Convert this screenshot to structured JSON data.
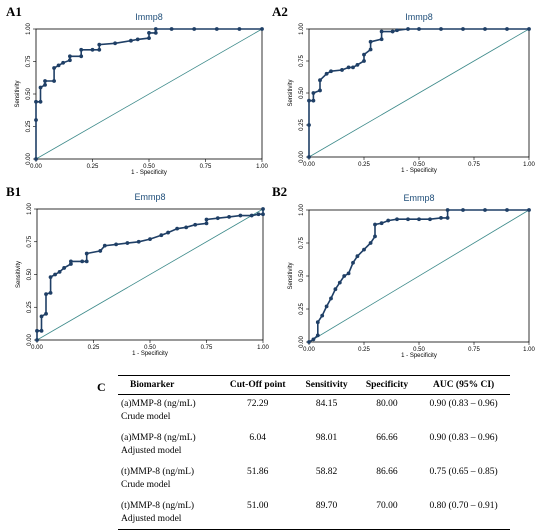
{
  "chart_data": [
    {
      "panel": "A1",
      "type": "line",
      "title": "Immp8",
      "xlabel": "1 - Specificity",
      "ylabel": "Sensitivity",
      "xlim": [
        0,
        1
      ],
      "ylim": [
        0,
        1
      ],
      "xticks": [
        "0.00",
        "0.25",
        "0.50",
        "0.75",
        "1.00"
      ],
      "yticks": [
        "0.00",
        "0.25",
        "0.50",
        "0.75",
        "1.00"
      ],
      "x": [
        0,
        0,
        0,
        0.02,
        0.02,
        0.04,
        0.04,
        0.08,
        0.08,
        0.1,
        0.12,
        0.15,
        0.15,
        0.2,
        0.2,
        0.25,
        0.28,
        0.28,
        0.35,
        0.42,
        0.45,
        0.5,
        0.5,
        0.53,
        0.53,
        0.6,
        0.7,
        0.8,
        0.9,
        1.0
      ],
      "y": [
        0,
        0.3,
        0.44,
        0.44,
        0.55,
        0.57,
        0.6,
        0.6,
        0.7,
        0.72,
        0.74,
        0.76,
        0.79,
        0.79,
        0.84,
        0.84,
        0.84,
        0.88,
        0.89,
        0.91,
        0.92,
        0.93,
        0.97,
        0.97,
        1.0,
        1.0,
        1.0,
        1.0,
        1.0,
        1.0
      ]
    },
    {
      "panel": "A2",
      "type": "line",
      "title": "Immp8",
      "xlabel": "1 - Specificity",
      "ylabel": "Sensitivity",
      "xlim": [
        0,
        1
      ],
      "ylim": [
        0,
        1
      ],
      "xticks": [
        "0.00",
        "0.25",
        "0.50",
        "0.75",
        "1.00"
      ],
      "yticks": [
        "0.00",
        "0.25",
        "0.50",
        "0.75",
        "1.00"
      ],
      "x": [
        0,
        0,
        0,
        0.02,
        0.02,
        0.05,
        0.05,
        0.08,
        0.1,
        0.15,
        0.18,
        0.2,
        0.22,
        0.25,
        0.25,
        0.28,
        0.28,
        0.33,
        0.33,
        0.38,
        0.4,
        0.45,
        0.5,
        0.6,
        0.7,
        0.8,
        0.9,
        1.0
      ],
      "y": [
        0,
        0.25,
        0.44,
        0.44,
        0.5,
        0.52,
        0.6,
        0.65,
        0.67,
        0.68,
        0.7,
        0.7,
        0.72,
        0.75,
        0.8,
        0.84,
        0.9,
        0.92,
        0.98,
        0.98,
        0.99,
        1.0,
        1.0,
        1.0,
        1.0,
        1.0,
        1.0,
        1.0
      ]
    },
    {
      "panel": "B1",
      "type": "line",
      "title": "Emmp8",
      "xlabel": "1 - Specificity",
      "ylabel": "Sensitivity",
      "xlim": [
        0,
        1
      ],
      "ylim": [
        0,
        1
      ],
      "xticks": [
        "0.00",
        "0.25",
        "0.50",
        "0.75",
        "1.00"
      ],
      "yticks": [
        "0.00",
        "0.25",
        "0.50",
        "0.75",
        "1.00"
      ],
      "x": [
        0,
        0,
        0.02,
        0.02,
        0.04,
        0.04,
        0.06,
        0.06,
        0.08,
        0.1,
        0.12,
        0.15,
        0.15,
        0.2,
        0.22,
        0.22,
        0.28,
        0.3,
        0.35,
        0.4,
        0.45,
        0.5,
        0.55,
        0.58,
        0.62,
        0.66,
        0.7,
        0.75,
        0.75,
        0.8,
        0.85,
        0.9,
        0.95,
        0.98,
        1.0,
        1.0
      ],
      "y": [
        0,
        0.07,
        0.07,
        0.18,
        0.2,
        0.35,
        0.36,
        0.48,
        0.5,
        0.52,
        0.55,
        0.58,
        0.6,
        0.6,
        0.6,
        0.66,
        0.68,
        0.72,
        0.73,
        0.74,
        0.75,
        0.77,
        0.8,
        0.82,
        0.85,
        0.86,
        0.88,
        0.89,
        0.92,
        0.93,
        0.94,
        0.95,
        0.95,
        0.96,
        0.96,
        1.0
      ]
    },
    {
      "panel": "B2",
      "type": "line",
      "title": "Emmp8",
      "xlabel": "1 - Specificity",
      "ylabel": "Sensitivity",
      "xlim": [
        0,
        1
      ],
      "ylim": [
        0,
        1
      ],
      "xticks": [
        "0.00",
        "0.25",
        "0.50",
        "0.75",
        "1.00"
      ],
      "yticks": [
        "0.00",
        "0.25",
        "0.50",
        "0.75",
        "1.00"
      ],
      "x": [
        0,
        0.02,
        0.04,
        0.04,
        0.06,
        0.08,
        0.1,
        0.12,
        0.14,
        0.16,
        0.18,
        0.2,
        0.22,
        0.25,
        0.28,
        0.3,
        0.3,
        0.33,
        0.36,
        0.4,
        0.45,
        0.5,
        0.55,
        0.6,
        0.63,
        0.63,
        0.7,
        0.8,
        0.9,
        1.0
      ],
      "y": [
        0,
        0.02,
        0.05,
        0.15,
        0.2,
        0.27,
        0.33,
        0.4,
        0.45,
        0.5,
        0.52,
        0.6,
        0.65,
        0.7,
        0.75,
        0.8,
        0.89,
        0.9,
        0.92,
        0.93,
        0.93,
        0.93,
        0.93,
        0.94,
        0.94,
        1.0,
        1.0,
        1.0,
        1.0,
        1.0
      ]
    }
  ],
  "table": {
    "label": "C",
    "headers": [
      "Biomarker",
      "Cut-Off point",
      "Sensitivity",
      "Specificity",
      "AUC (95% CI)"
    ],
    "rows": [
      {
        "line1": "(a)MMP-8 (ng/mL)",
        "line2": "Crude model",
        "cutoff": "72.29",
        "sens": "84.15",
        "spec": "80.00",
        "auc": "0.90 (0.83 – 0.96)"
      },
      {
        "line1": "(a)MMP-8 (ng/mL)",
        "line2": "Adjusted model",
        "cutoff": "6.04",
        "sens": "98.01",
        "spec": "66.66",
        "auc": "0.90 (0.83 – 0.96)"
      },
      {
        "line1": "(t)MMP-8 (ng/mL)",
        "line2": "Crude model",
        "cutoff": "51.86",
        "sens": "58.82",
        "spec": "86.66",
        "auc": "0.75 (0.65 – 0.85)"
      },
      {
        "line1": "(t)MMP-8 (ng/mL)",
        "line2": "Adjusted model",
        "cutoff": "51.00",
        "sens": "89.70",
        "spec": "70.00",
        "auc": "0.80 (0.70 – 0.91)"
      }
    ]
  },
  "colors": {
    "curve": "#1f3f66",
    "reference": "#3d8a8a",
    "title": "#1f4e79"
  }
}
